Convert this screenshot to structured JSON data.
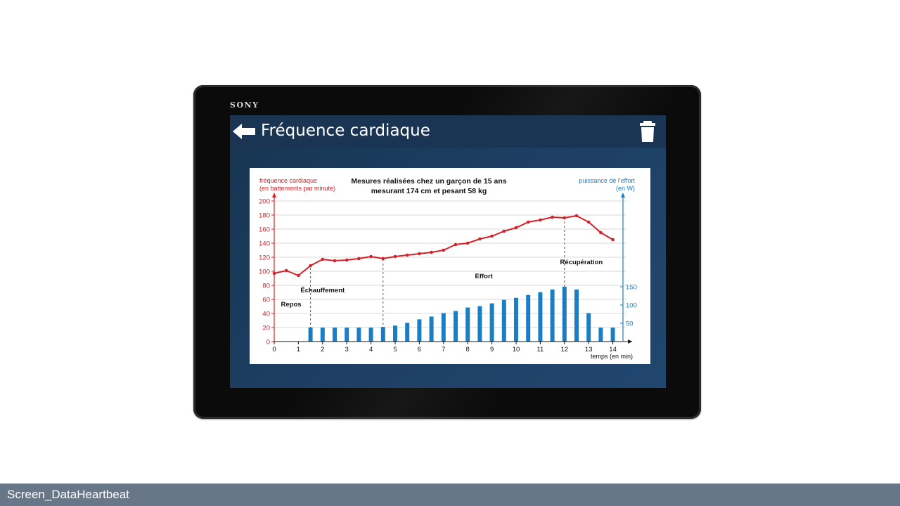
{
  "device": {
    "brand": "SONY"
  },
  "app": {
    "title": "Fréquence cardiaque",
    "back_icon": "arrow-left-icon",
    "delete_icon": "trash-icon"
  },
  "footer": {
    "label": "Screen_DataHeartbeat"
  },
  "chart_data": {
    "type": "bar+line",
    "title_line1": "Mesures réalisées chez un garçon de 15 ans",
    "title_line2": "mesurant 174 cm et pesant 58 kg",
    "ylabel_left_line1": "fréquence cardiaque",
    "ylabel_left_line2": "(en battements par minute)",
    "ylabel_right_line1": "puissance de l'effort",
    "ylabel_right_line2": "(en W)",
    "xlabel": "temps (en min)",
    "xlim": [
      0,
      14.8
    ],
    "ylim_left": [
      0,
      200
    ],
    "ylim_right": [
      0,
      200
    ],
    "x_ticks": [
      0,
      1,
      2,
      3,
      4,
      5,
      6,
      7,
      8,
      9,
      10,
      11,
      12,
      13,
      14
    ],
    "y_ticks_left": [
      0,
      20,
      40,
      60,
      80,
      100,
      120,
      140,
      160,
      180,
      200
    ],
    "y_ticks_right": [
      50,
      100,
      150
    ],
    "grid": true,
    "colors": {
      "heart_rate": "#d4222a",
      "power": "#1a7ec4",
      "left_axis": "#d4222a",
      "right_axis": "#1a7ec4"
    },
    "phases": [
      {
        "label": "Repos",
        "x": 0.7,
        "y": 50
      },
      {
        "label": "Échauffement",
        "x": 2.0,
        "y": 70
      },
      {
        "label": "Effort",
        "x": 8.3,
        "y": 90
      },
      {
        "label": "Récupération",
        "x": 12.7,
        "y": 110
      }
    ],
    "phase_dividers": [
      1.5,
      4.5,
      12
    ],
    "series": [
      {
        "name": "puissance de l'effort",
        "type": "bar",
        "x": [
          1.5,
          2,
          2.5,
          3,
          3.5,
          4,
          4.5,
          5,
          5.5,
          6,
          6.5,
          7,
          7.5,
          8,
          8.5,
          9,
          9.5,
          10,
          10.5,
          11,
          11.5,
          12,
          12.5,
          13,
          13.5,
          14
        ],
        "values": [
          20,
          20,
          20,
          20,
          20,
          20,
          21,
          23,
          27,
          32,
          36,
          41,
          44,
          49,
          51,
          55,
          60,
          63,
          67,
          71,
          75,
          79,
          75,
          41,
          20,
          20
        ]
      },
      {
        "name": "fréquence cardiaque",
        "type": "line",
        "x": [
          0,
          0.5,
          1,
          1.5,
          2,
          2.5,
          3,
          3.5,
          4,
          4.5,
          5,
          5.5,
          6,
          6.5,
          7,
          7.5,
          8,
          8.5,
          9,
          9.5,
          10,
          10.5,
          11,
          11.5,
          12,
          12.5,
          13,
          13.5,
          14
        ],
        "values": [
          97,
          101,
          94,
          108,
          117,
          115,
          116,
          118,
          121,
          118,
          121,
          123,
          125,
          127,
          130,
          138,
          140,
          146,
          150,
          157,
          162,
          170,
          173,
          177,
          176,
          179,
          170,
          155,
          145
        ]
      }
    ]
  }
}
